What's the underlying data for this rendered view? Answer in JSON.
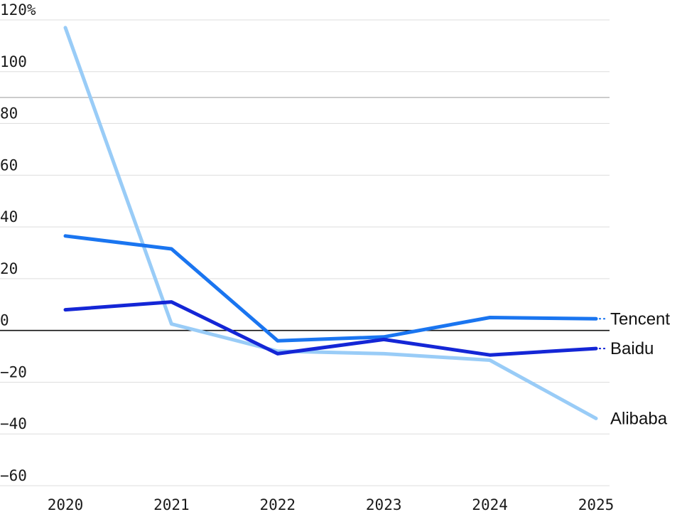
{
  "chart_data": {
    "type": "line",
    "title": "",
    "xlabel": "",
    "ylabel": "",
    "y_unit": "%",
    "x": [
      "2020",
      "2021",
      "2022",
      "2023",
      "2024",
      "2025"
    ],
    "xlim": [
      "2020",
      "2025"
    ],
    "ylim": [
      -60,
      120
    ],
    "y_ticks": [
      120,
      100,
      80,
      60,
      40,
      20,
      0,
      -20,
      -40,
      -60
    ],
    "y_tick_labels": [
      "120%",
      "100",
      "80",
      "60",
      "40",
      "20",
      "0",
      "−20",
      "−40",
      "−60"
    ],
    "grid": true,
    "zero_line": true,
    "legend": "direct labels at right end of lines",
    "series": [
      {
        "name": "Alibaba",
        "color": "#99ccf7",
        "values": [
          117,
          2.5,
          -8,
          -9,
          -11.5,
          -34
        ]
      },
      {
        "name": "Tencent",
        "color": "#1a75f0",
        "values": [
          36.5,
          31.5,
          -4,
          -2.5,
          5,
          4.5
        ]
      },
      {
        "name": "Baidu",
        "color": "#1426d6",
        "values": [
          8,
          11,
          -9,
          -3.5,
          -9.5,
          -7
        ]
      }
    ]
  }
}
